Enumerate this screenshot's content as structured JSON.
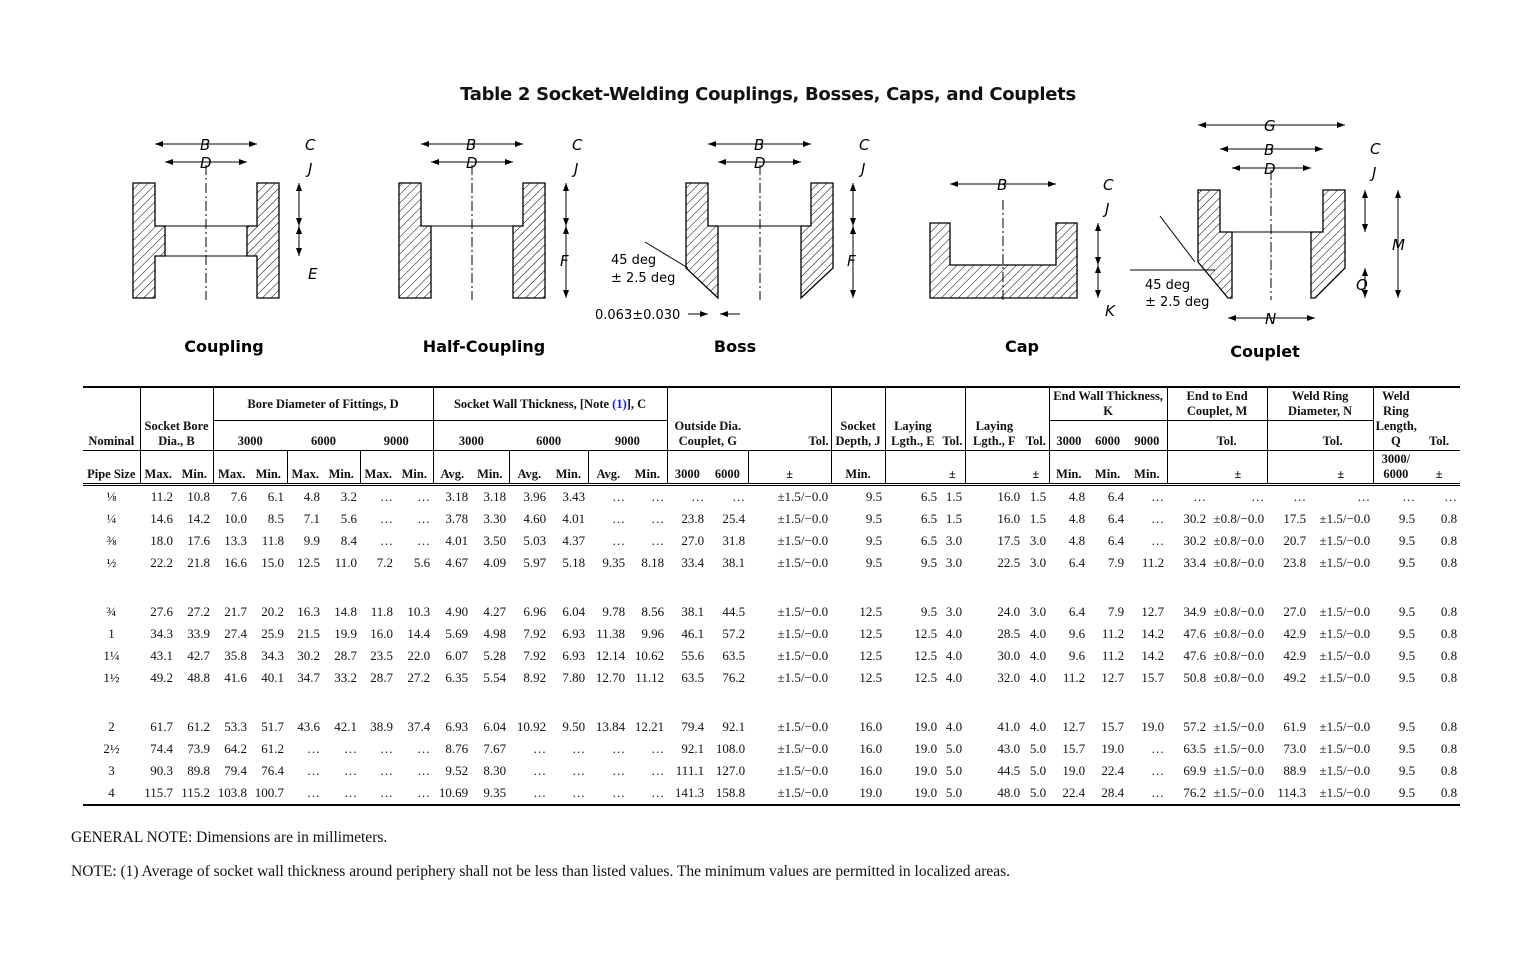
{
  "title": "Table 2 Socket-Welding Couplings, Bosses, Caps, and Couplets",
  "figures": {
    "captions": [
      "Coupling",
      "Half-Coupling",
      "Boss",
      "Cap",
      "Couplet"
    ],
    "labels": {
      "B": "B",
      "C": "C",
      "D": "D",
      "J": "J",
      "E": "E",
      "F": "F",
      "K": "K",
      "G": "G",
      "M": "M",
      "N": "N",
      "Q": "Q"
    },
    "angle_line1": "45 deg",
    "angle_line2": "± 2.5 deg",
    "boss_gap": "0.063±0.030"
  },
  "table": {
    "header": {
      "nominal": "Nominal",
      "pipe_size": "Pipe Size",
      "socket_bore": "Socket Bore Dia., B",
      "bore_dia": "Bore Diameter of Fittings, D",
      "wall_thk_pre": "Socket Wall Thickness, [Note ",
      "wall_thk_note": "(1)",
      "wall_thk_post": "], C",
      "outside_dia": "Outside Dia. Couplet, G",
      "tol": "Tol.",
      "socket_depth": "Socket Depth, J",
      "laying_e": "Laying Lgth., E",
      "laying_f": "Laying Lgth., F",
      "end_wall": "End Wall Thickness, K",
      "end_to_end": "End to End Couplet, M",
      "weld_ring_dia": "Weld Ring Diameter, N",
      "weld_ring_len": "Weld Ring Length, Q",
      "c3000": "3000",
      "c6000": "6000",
      "c9000": "9000",
      "max": "Max.",
      "min": "Min.",
      "avg": "Avg.",
      "pm": "±",
      "q_class": "3000/ 6000"
    },
    "groups": [
      [
        [
          "⅛",
          "11.2",
          "10.8",
          "7.6",
          "6.1",
          "4.8",
          "3.2",
          "…",
          "…",
          "3.18",
          "3.18",
          "3.96",
          "3.43",
          "…",
          "…",
          "…",
          "…",
          "±1.5/−0.0",
          "9.5",
          "6.5",
          "1.5",
          "16.0",
          "1.5",
          "4.8",
          "6.4",
          "…",
          "…",
          "…",
          "…",
          "…",
          "…",
          "…"
        ],
        [
          "¼",
          "14.6",
          "14.2",
          "10.0",
          "8.5",
          "7.1",
          "5.6",
          "…",
          "…",
          "3.78",
          "3.30",
          "4.60",
          "4.01",
          "…",
          "…",
          "23.8",
          "25.4",
          "±1.5/−0.0",
          "9.5",
          "6.5",
          "1.5",
          "16.0",
          "1.5",
          "4.8",
          "6.4",
          "…",
          "30.2",
          "±0.8/−0.0",
          "17.5",
          "±1.5/−0.0",
          "9.5",
          "0.8"
        ],
        [
          "⅜",
          "18.0",
          "17.6",
          "13.3",
          "11.8",
          "9.9",
          "8.4",
          "…",
          "…",
          "4.01",
          "3.50",
          "5.03",
          "4.37",
          "…",
          "…",
          "27.0",
          "31.8",
          "±1.5/−0.0",
          "9.5",
          "6.5",
          "3.0",
          "17.5",
          "3.0",
          "4.8",
          "6.4",
          "…",
          "30.2",
          "±0.8/−0.0",
          "20.7",
          "±1.5/−0.0",
          "9.5",
          "0.8"
        ],
        [
          "½",
          "22.2",
          "21.8",
          "16.6",
          "15.0",
          "12.5",
          "11.0",
          "7.2",
          "5.6",
          "4.67",
          "4.09",
          "5.97",
          "5.18",
          "9.35",
          "8.18",
          "33.4",
          "38.1",
          "±1.5/−0.0",
          "9.5",
          "9.5",
          "3.0",
          "22.5",
          "3.0",
          "6.4",
          "7.9",
          "11.2",
          "33.4",
          "±0.8/−0.0",
          "23.8",
          "±1.5/−0.0",
          "9.5",
          "0.8"
        ]
      ],
      [
        [
          "¾",
          "27.6",
          "27.2",
          "21.7",
          "20.2",
          "16.3",
          "14.8",
          "11.8",
          "10.3",
          "4.90",
          "4.27",
          "6.96",
          "6.04",
          "9.78",
          "8.56",
          "38.1",
          "44.5",
          "±1.5/−0.0",
          "12.5",
          "9.5",
          "3.0",
          "24.0",
          "3.0",
          "6.4",
          "7.9",
          "12.7",
          "34.9",
          "±0.8/−0.0",
          "27.0",
          "±1.5/−0.0",
          "9.5",
          "0.8"
        ],
        [
          "1",
          "34.3",
          "33.9",
          "27.4",
          "25.9",
          "21.5",
          "19.9",
          "16.0",
          "14.4",
          "5.69",
          "4.98",
          "7.92",
          "6.93",
          "11.38",
          "9.96",
          "46.1",
          "57.2",
          "±1.5/−0.0",
          "12.5",
          "12.5",
          "4.0",
          "28.5",
          "4.0",
          "9.6",
          "11.2",
          "14.2",
          "47.6",
          "±0.8/−0.0",
          "42.9",
          "±1.5/−0.0",
          "9.5",
          "0.8"
        ],
        [
          "1¼",
          "43.1",
          "42.7",
          "35.8",
          "34.3",
          "30.2",
          "28.7",
          "23.5",
          "22.0",
          "6.07",
          "5.28",
          "7.92",
          "6.93",
          "12.14",
          "10.62",
          "55.6",
          "63.5",
          "±1.5/−0.0",
          "12.5",
          "12.5",
          "4.0",
          "30.0",
          "4.0",
          "9.6",
          "11.2",
          "14.2",
          "47.6",
          "±0.8/−0.0",
          "42.9",
          "±1.5/−0.0",
          "9.5",
          "0.8"
        ],
        [
          "1½",
          "49.2",
          "48.8",
          "41.6",
          "40.1",
          "34.7",
          "33.2",
          "28.7",
          "27.2",
          "6.35",
          "5.54",
          "8.92",
          "7.80",
          "12.70",
          "11.12",
          "63.5",
          "76.2",
          "±1.5/−0.0",
          "12.5",
          "12.5",
          "4.0",
          "32.0",
          "4.0",
          "11.2",
          "12.7",
          "15.7",
          "50.8",
          "±0.8/−0.0",
          "49.2",
          "±1.5/−0.0",
          "9.5",
          "0.8"
        ]
      ],
      [
        [
          "2",
          "61.7",
          "61.2",
          "53.3",
          "51.7",
          "43.6",
          "42.1",
          "38.9",
          "37.4",
          "6.93",
          "6.04",
          "10.92",
          "9.50",
          "13.84",
          "12.21",
          "79.4",
          "92.1",
          "±1.5/−0.0",
          "16.0",
          "19.0",
          "4.0",
          "41.0",
          "4.0",
          "12.7",
          "15.7",
          "19.0",
          "57.2",
          "±1.5/−0.0",
          "61.9",
          "±1.5/−0.0",
          "9.5",
          "0.8"
        ],
        [
          "2½",
          "74.4",
          "73.9",
          "64.2",
          "61.2",
          "…",
          "…",
          "…",
          "…",
          "8.76",
          "7.67",
          "…",
          "…",
          "…",
          "…",
          "92.1",
          "108.0",
          "±1.5/−0.0",
          "16.0",
          "19.0",
          "5.0",
          "43.0",
          "5.0",
          "15.7",
          "19.0",
          "…",
          "63.5",
          "±1.5/−0.0",
          "73.0",
          "±1.5/−0.0",
          "9.5",
          "0.8"
        ],
        [
          "3",
          "90.3",
          "89.8",
          "79.4",
          "76.4",
          "…",
          "…",
          "…",
          "…",
          "9.52",
          "8.30",
          "…",
          "…",
          "…",
          "…",
          "111.1",
          "127.0",
          "±1.5/−0.0",
          "16.0",
          "19.0",
          "5.0",
          "44.5",
          "5.0",
          "19.0",
          "22.4",
          "…",
          "69.9",
          "±1.5/−0.0",
          "88.9",
          "±1.5/−0.0",
          "9.5",
          "0.8"
        ],
        [
          "4",
          "115.7",
          "115.2",
          "103.8",
          "100.7",
          "…",
          "…",
          "…",
          "…",
          "10.69",
          "9.35",
          "…",
          "…",
          "…",
          "…",
          "141.3",
          "158.8",
          "±1.5/−0.0",
          "19.0",
          "19.0",
          "5.0",
          "48.0",
          "5.0",
          "22.4",
          "28.4",
          "…",
          "76.2",
          "±1.5/−0.0",
          "114.3",
          "±1.5/−0.0",
          "9.5",
          "0.8"
        ]
      ]
    ]
  },
  "general_note": "GENERAL NOTE:  Dimensions are in millimeters.",
  "note": "NOTE:  (1)  Average of socket wall thickness around periphery shall not be less than listed values. The minimum values are permitted in localized areas."
}
